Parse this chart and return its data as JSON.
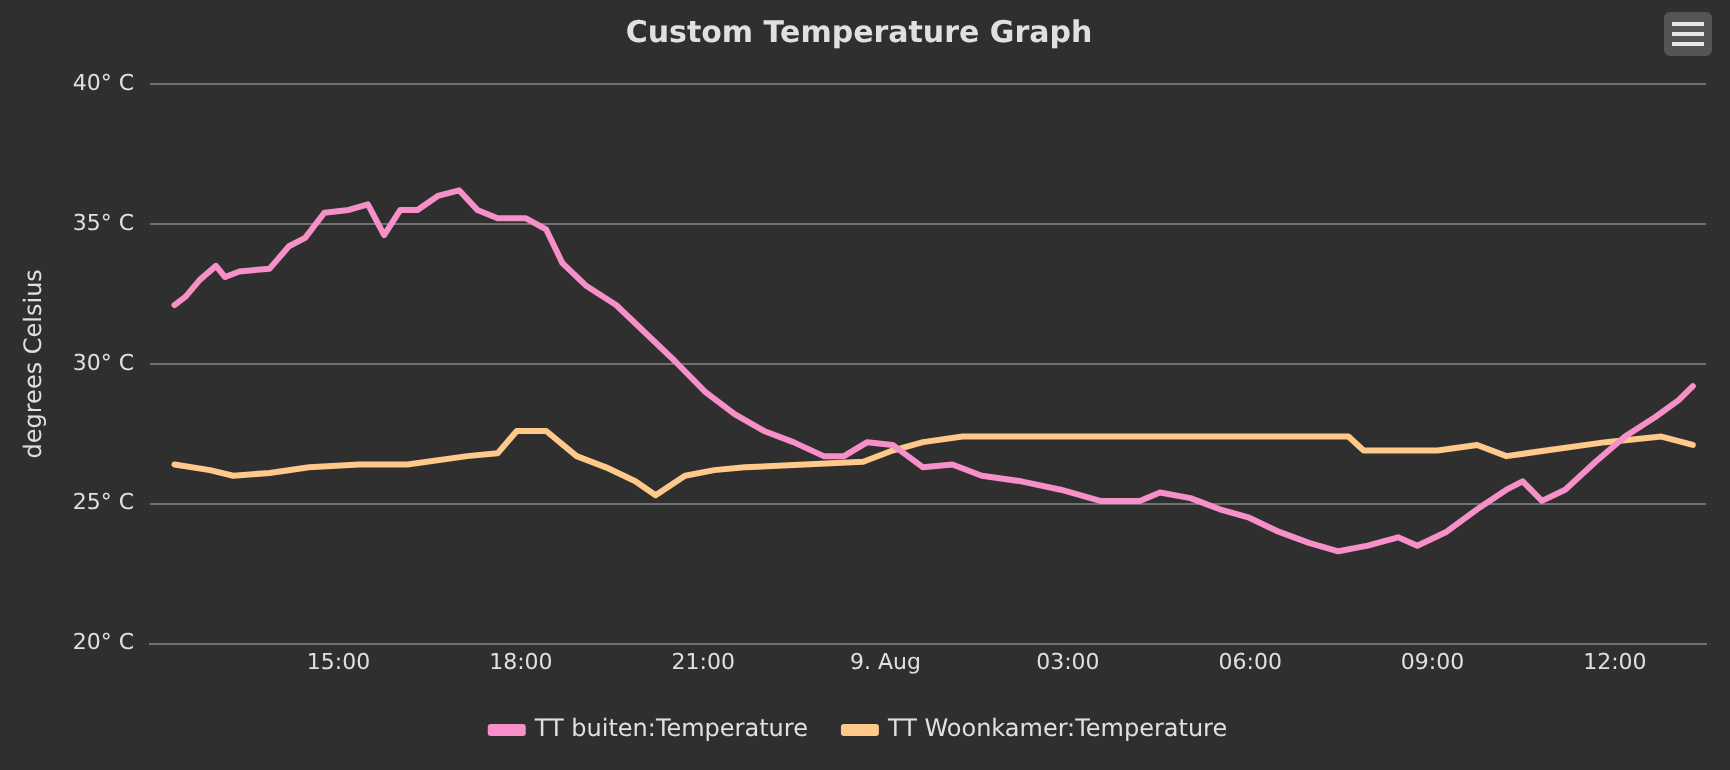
{
  "chart_data": {
    "type": "line",
    "title": "Custom Temperature Graph",
    "ylabel": "degrees Celsius",
    "xlim": [
      "--08-08T11:54",
      "--08-09T13:30"
    ],
    "xticks": [
      {
        "value": "--08-08T15:00",
        "label": "15:00"
      },
      {
        "value": "--08-08T18:00",
        "label": "18:00"
      },
      {
        "value": "--08-08T21:00",
        "label": "21:00"
      },
      {
        "value": "--08-09T00:00",
        "label": "9. Aug"
      },
      {
        "value": "--08-09T03:00",
        "label": "03:00"
      },
      {
        "value": "--08-09T06:00",
        "label": "06:00"
      },
      {
        "value": "--08-09T09:00",
        "label": "09:00"
      },
      {
        "value": "--08-09T12:00",
        "label": "12:00"
      }
    ],
    "ylim": [
      20,
      40
    ],
    "yticks": [
      {
        "value": 20,
        "label": "20° C"
      },
      {
        "value": 25,
        "label": "25° C"
      },
      {
        "value": 30,
        "label": "30° C"
      },
      {
        "value": 35,
        "label": "35° C"
      },
      {
        "value": 40,
        "label": "40° C"
      }
    ],
    "grid": "y",
    "legend": "bottom",
    "marker": "none",
    "line_style": "solid",
    "series": [
      {
        "name": "TT buiten:Temperature",
        "color": "#f78fc8",
        "x": [
          "--08-08T12:18",
          "--08-08T12:29",
          "--08-08T12:43",
          "--08-08T12:59",
          "--08-08T13:08",
          "--08-08T13:22",
          "--08-08T13:52",
          "--08-08T14:11",
          "--08-08T14:27",
          "--08-08T14:46",
          "--08-08T15:10",
          "--08-08T15:29",
          "--08-08T15:45",
          "--08-08T16:01",
          "--08-08T16:18",
          "--08-08T16:38",
          "--08-08T16:59",
          "--08-08T17:17",
          "--08-08T17:37",
          "--08-08T18:05",
          "--08-08T18:25",
          "--08-08T18:41",
          "--08-08T19:04",
          "--08-08T19:34",
          "--08-08T20:03",
          "--08-08T20:32",
          "--08-08T21:02",
          "--08-08T21:31",
          "--08-08T22:00",
          "--08-08T22:29",
          "--08-08T22:59",
          "--08-08T23:19",
          "--08-08T23:42",
          "--08-09T00:07",
          "--08-09T00:37",
          "--08-09T01:06",
          "--08-09T01:35",
          "--08-09T02:14",
          "--08-09T02:53",
          "--08-09T03:32",
          "--08-09T04:11",
          "--08-09T04:31",
          "--08-09T05:01",
          "--08-09T05:30",
          "--08-09T05:59",
          "--08-09T06:28",
          "--08-09T06:58",
          "--08-09T07:27",
          "--08-09T07:56",
          "--08-09T08:26",
          "--08-09T08:45",
          "--08-09T09:14",
          "--08-09T09:44",
          "--08-09T10:13",
          "--08-09T10:29",
          "--08-09T10:48",
          "--08-09T11:11",
          "--08-09T11:41",
          "--08-09T12:10",
          "--08-09T12:40",
          "--08-09T13:03",
          "--08-09T13:17"
        ],
        "values": [
          32.1,
          32.4,
          33.0,
          33.5,
          33.1,
          33.3,
          33.4,
          34.2,
          34.5,
          35.4,
          35.5,
          35.7,
          34.6,
          35.5,
          35.5,
          36.0,
          36.2,
          35.5,
          35.2,
          35.2,
          34.8,
          33.6,
          32.8,
          32.1,
          31.1,
          30.1,
          29.0,
          28.2,
          27.6,
          27.2,
          26.7,
          26.7,
          27.2,
          27.1,
          26.3,
          26.4,
          26.0,
          25.8,
          25.5,
          25.1,
          25.1,
          25.4,
          25.2,
          24.8,
          24.5,
          24.0,
          23.6,
          23.3,
          23.5,
          23.8,
          23.5,
          24.0,
          24.8,
          25.5,
          25.8,
          25.1,
          25.5,
          26.5,
          27.4,
          28.1,
          28.7,
          29.2
        ]
      },
      {
        "name": "TT Woonkamer:Temperature",
        "color": "#ffc98a",
        "x": [
          "--08-08T12:18",
          "--08-08T12:53",
          "--08-08T13:16",
          "--08-08T13:52",
          "--08-08T14:31",
          "--08-08T15:20",
          "--08-08T16:08",
          "--08-08T17:07",
          "--08-08T17:37",
          "--08-08T17:56",
          "--08-08T18:25",
          "--08-08T18:55",
          "--08-08T19:24",
          "--08-08T19:53",
          "--08-08T20:13",
          "--08-08T20:42",
          "--08-08T21:11",
          "--08-08T21:41",
          "--08-08T22:40",
          "--08-08T23:38",
          "--08-09T00:07",
          "--08-09T00:37",
          "--08-09T01:16",
          "--08-09T03:52",
          "--08-09T07:37",
          "--08-09T07:52",
          "--08-09T09:05",
          "--08-09T09:44",
          "--08-09T10:13",
          "--08-09T10:52",
          "--08-09T11:51",
          "--08-09T12:46",
          "--08-09T13:17"
        ],
        "values": [
          26.4,
          26.2,
          26.0,
          26.1,
          26.3,
          26.4,
          26.4,
          26.7,
          26.8,
          27.6,
          27.6,
          26.7,
          26.3,
          25.8,
          25.3,
          26.0,
          26.2,
          26.3,
          26.4,
          26.5,
          26.9,
          27.2,
          27.4,
          27.4,
          27.4,
          26.9,
          26.9,
          27.1,
          26.7,
          26.9,
          27.2,
          27.4,
          27.1
        ]
      }
    ]
  }
}
